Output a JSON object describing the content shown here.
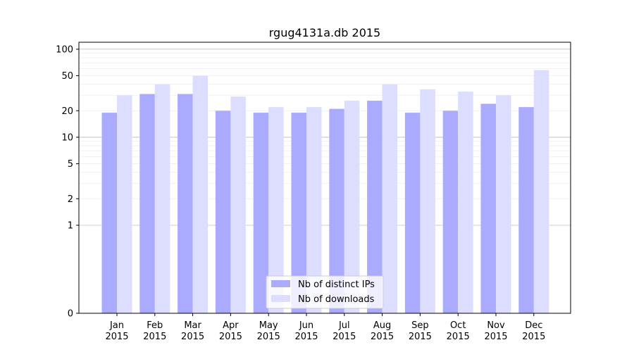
{
  "chart_data": {
    "type": "bar",
    "title": "rgug4131a.db 2015",
    "xlabel": "",
    "ylabel": "",
    "yscale": "symlog",
    "ylim": [
      0,
      120
    ],
    "grid": true,
    "legend_placement": "lower-center",
    "categories": [
      {
        "month": "Jan",
        "year": "2015"
      },
      {
        "month": "Feb",
        "year": "2015"
      },
      {
        "month": "Mar",
        "year": "2015"
      },
      {
        "month": "Apr",
        "year": "2015"
      },
      {
        "month": "May",
        "year": "2015"
      },
      {
        "month": "Jun",
        "year": "2015"
      },
      {
        "month": "Jul",
        "year": "2015"
      },
      {
        "month": "Aug",
        "year": "2015"
      },
      {
        "month": "Sep",
        "year": "2015"
      },
      {
        "month": "Oct",
        "year": "2015"
      },
      {
        "month": "Nov",
        "year": "2015"
      },
      {
        "month": "Dec",
        "year": "2015"
      }
    ],
    "y_ticks": [
      0,
      1,
      2,
      5,
      10,
      20,
      50,
      100
    ],
    "series": [
      {
        "name": "Nb of distinct IPs",
        "color": "#aaaaff",
        "values": [
          19,
          31,
          31,
          20,
          19,
          19,
          21,
          26,
          19,
          20,
          24,
          22
        ]
      },
      {
        "name": "Nb of downloads",
        "color": "#ddddff",
        "values": [
          30,
          40,
          50,
          29,
          22,
          22,
          26,
          40,
          35,
          33,
          30,
          58
        ]
      }
    ]
  }
}
